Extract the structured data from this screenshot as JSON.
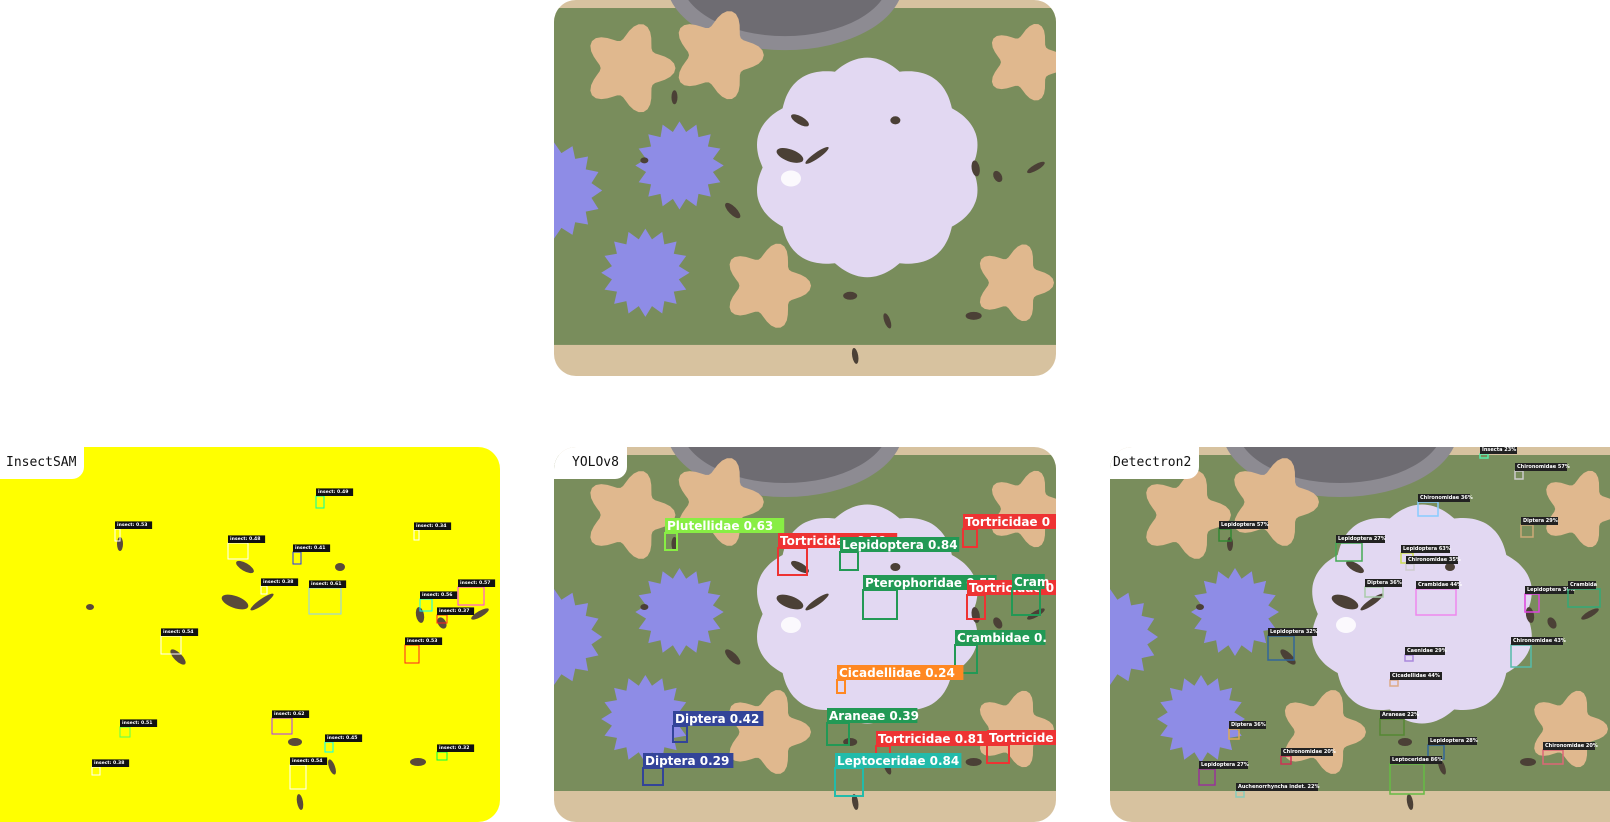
{
  "colors": {
    "tray": "#798d5c",
    "tray_edge": "#d7c29f",
    "tan_flower": "#e0b88e",
    "blue_flower": "#8e8ce6",
    "lilac_flower": "#e2d8f2",
    "mask_yellow": "#ffff00",
    "lid": "#8d8b92"
  },
  "panels": {
    "insectsam": {
      "label": "InsectSAM",
      "detections": [
        {
          "label": "insect: 0.49",
          "color": "#00ffaa"
        },
        {
          "label": "insect: 0.53",
          "color": "#ffffff"
        },
        {
          "label": "insect: 0.48",
          "color": "#ffffff"
        },
        {
          "label": "insect: 0.41",
          "color": "#2233ff"
        },
        {
          "label": "insect: 0.34",
          "color": "#ffffff"
        },
        {
          "label": "insect: 0.38",
          "color": "#ffffff"
        },
        {
          "label": "insect: 0.61",
          "color": "#88ccff"
        },
        {
          "label": "insect: 0.56",
          "color": "#00ffff"
        },
        {
          "label": "insect: 0.57",
          "color": "#ff33ff"
        },
        {
          "label": "insect: 0.37",
          "color": "#ff2222"
        },
        {
          "label": "insect: 0.54",
          "color": "#ffffff"
        },
        {
          "label": "insect: 0.53",
          "color": "#ff2222"
        },
        {
          "label": "insect: 0.51",
          "color": "#55ff55"
        },
        {
          "label": "insect: 0.62",
          "color": "#aa33ff"
        },
        {
          "label": "insect: 0.45",
          "color": "#00ffff"
        },
        {
          "label": "insect: 0.32",
          "color": "#00ff44"
        },
        {
          "label": "insect: 0.38",
          "color": "#ffffff"
        },
        {
          "label": "insect: 0.54",
          "color": "#ffffff"
        }
      ]
    },
    "yolo": {
      "label": "YOLOv8",
      "detections": [
        {
          "label": "Plutellidae 0.63",
          "color": "#88ee44"
        },
        {
          "label": "Tortricidae 0.50",
          "color": "#ee3333"
        },
        {
          "label": "Lepidoptera 0.84",
          "color": "#229955"
        },
        {
          "label": "Tortricidae 0",
          "color": "#ee3333"
        },
        {
          "label": "Pterophoridae 0.57",
          "color": "#229955"
        },
        {
          "label": "Tortricidae 0",
          "color": "#ee3333"
        },
        {
          "label": "Cram",
          "color": "#229955"
        },
        {
          "label": "Crambidae 0.",
          "color": "#229955"
        },
        {
          "label": "Cicadellidae 0.24",
          "color": "#ff8822"
        },
        {
          "label": "Diptera 0.42",
          "color": "#334499"
        },
        {
          "label": "Araneae 0.39",
          "color": "#229955"
        },
        {
          "label": "Tortricidae 0.81",
          "color": "#ee3333"
        },
        {
          "label": "Tortricide",
          "color": "#ee3333"
        },
        {
          "label": "Diptera 0.29",
          "color": "#334499"
        },
        {
          "label": "Leptoceridae 0.84",
          "color": "#22bbaa"
        }
      ]
    },
    "detectron": {
      "label": "Detectron2",
      "detections": [
        {
          "label": "Insecta 23%",
          "color": "#55eeaa"
        },
        {
          "label": "Chironomidae 57%",
          "color": "#cccccc"
        },
        {
          "label": "Chironomidae 36%",
          "color": "#88ccff"
        },
        {
          "label": "Lepidoptera 57%",
          "color": "#338833"
        },
        {
          "label": "Lepidoptera 27%",
          "color": "#44aa55"
        },
        {
          "label": "Lepidoptera 63%",
          "color": "#ccdd55"
        },
        {
          "label": "Chironomidae 35%",
          "color": "#cccccc"
        },
        {
          "label": "Diptera 29%",
          "color": "#ccaa77"
        },
        {
          "label": "Diptera 36%",
          "color": "#aaccaa"
        },
        {
          "label": "Crambidae 44%",
          "color": "#ee88ee"
        },
        {
          "label": "Lepidoptera 36%",
          "color": "#dd44dd"
        },
        {
          "label": "Crambida",
          "color": "#33aa77"
        },
        {
          "label": "Lepidoptera 32%",
          "color": "#336699"
        },
        {
          "label": "Chironomidae 43%",
          "color": "#55bbaa"
        },
        {
          "label": "Caenidae 29%",
          "color": "#aa88dd"
        },
        {
          "label": "Cicadellidae 44%",
          "color": "#ddaa88"
        },
        {
          "label": "Araneae 22%",
          "color": "#558833"
        },
        {
          "label": "Diptera 36%",
          "color": "#ddaa55"
        },
        {
          "label": "Lepidoptera 28%",
          "color": "#336699"
        },
        {
          "label": "Chironomidae 20%",
          "color": "#cc3355"
        },
        {
          "label": "Chironomidae 20%",
          "color": "#dd6677"
        },
        {
          "label": "Leptoceridae 86%",
          "color": "#66bb44"
        },
        {
          "label": "Lepidoptera 27%",
          "color": "#993399"
        },
        {
          "label": "Auchenorrhyncha indet. 22%",
          "color": "#88ccbb"
        }
      ]
    }
  }
}
